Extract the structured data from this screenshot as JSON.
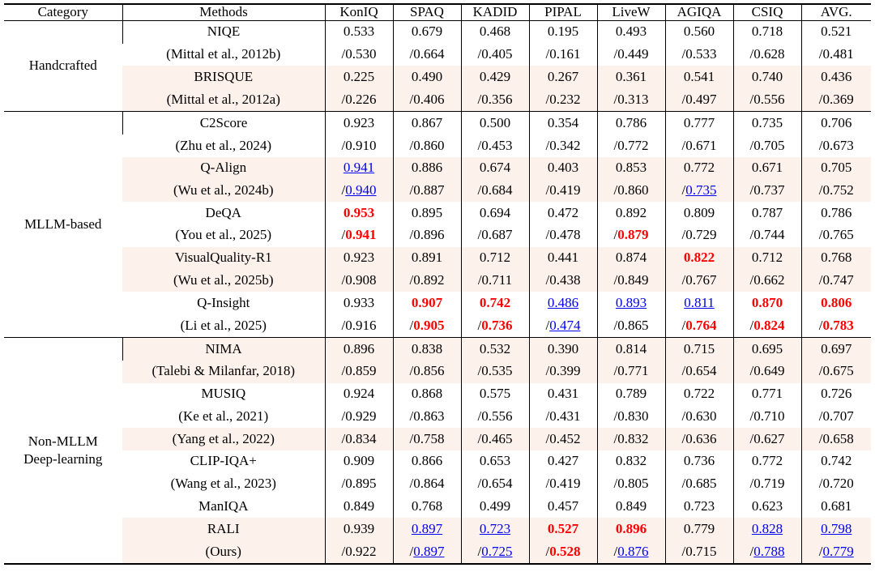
{
  "table": {
    "headers": [
      "Category",
      "Methods",
      "KonIQ",
      "SPAQ",
      "KADID",
      "PIPAL",
      "LiveW",
      "AGIQA",
      "CSIQ",
      "AVG."
    ],
    "groups": [
      {
        "category": [
          "Handcrafted"
        ],
        "rows": [
          {
            "method": "NIQE",
            "shade": false,
            "cells": [
              {
                "t": "0.533"
              },
              {
                "t": "0.679"
              },
              {
                "t": "0.468"
              },
              {
                "t": "0.195"
              },
              {
                "t": "0.493"
              },
              {
                "t": "0.560"
              },
              {
                "t": "0.718"
              },
              {
                "t": "0.521"
              }
            ]
          },
          {
            "method": "(Mittal et al., 2012b)",
            "shade": false,
            "cells": [
              {
                "t": "/0.530"
              },
              {
                "t": "/0.664"
              },
              {
                "t": "/0.405"
              },
              {
                "t": "/0.161"
              },
              {
                "t": "/0.449"
              },
              {
                "t": "/0.533"
              },
              {
                "t": "/0.628"
              },
              {
                "t": "/0.481"
              }
            ]
          },
          {
            "method": "BRISQUE",
            "shade": true,
            "cells": [
              {
                "t": "0.225"
              },
              {
                "t": "0.490"
              },
              {
                "t": "0.429"
              },
              {
                "t": "0.267"
              },
              {
                "t": "0.361"
              },
              {
                "t": "0.541"
              },
              {
                "t": "0.740"
              },
              {
                "t": "0.436"
              }
            ]
          },
          {
            "method": "(Mittal et al., 2012a)",
            "shade": true,
            "cells": [
              {
                "t": "/0.226"
              },
              {
                "t": "/0.406"
              },
              {
                "t": "/0.356"
              },
              {
                "t": "/0.232"
              },
              {
                "t": "/0.313"
              },
              {
                "t": "/0.497"
              },
              {
                "t": "/0.556"
              },
              {
                "t": "/0.369"
              }
            ]
          }
        ]
      },
      {
        "category": [
          "MLLM-based"
        ],
        "rows": [
          {
            "method": "C2Score",
            "shade": false,
            "cells": [
              {
                "t": "0.923"
              },
              {
                "t": "0.867"
              },
              {
                "t": "0.500"
              },
              {
                "t": "0.354"
              },
              {
                "t": "0.786"
              },
              {
                "t": "0.777"
              },
              {
                "t": "0.735"
              },
              {
                "t": "0.706"
              }
            ]
          },
          {
            "method": "(Zhu et al., 2024)",
            "shade": false,
            "cells": [
              {
                "t": "/0.910"
              },
              {
                "t": "/0.860"
              },
              {
                "t": "/0.453"
              },
              {
                "t": "/0.342"
              },
              {
                "t": "/0.772"
              },
              {
                "t": "/0.671"
              },
              {
                "t": "/0.705"
              },
              {
                "t": "/0.673"
              }
            ]
          },
          {
            "method": "Q-Align",
            "shade": true,
            "cells": [
              {
                "t": "0.941",
                "s": "second"
              },
              {
                "t": "0.886"
              },
              {
                "t": "0.674"
              },
              {
                "t": "0.403"
              },
              {
                "t": "0.853"
              },
              {
                "t": "0.772"
              },
              {
                "t": "0.671"
              },
              {
                "t": "0.705"
              }
            ]
          },
          {
            "method": "(Wu et al., 2024b)",
            "shade": true,
            "cells": [
              {
                "t": "0.940",
                "s": "second",
                "slash": true
              },
              {
                "t": "/0.887"
              },
              {
                "t": "/0.684"
              },
              {
                "t": "/0.419"
              },
              {
                "t": "/0.860"
              },
              {
                "t": "0.735",
                "s": "second",
                "slash": true
              },
              {
                "t": "/0.737"
              },
              {
                "t": "/0.752"
              }
            ]
          },
          {
            "method": "DeQA",
            "shade": false,
            "cells": [
              {
                "t": "0.953",
                "s": "best"
              },
              {
                "t": "0.895"
              },
              {
                "t": "0.694"
              },
              {
                "t": "0.472"
              },
              {
                "t": "0.892"
              },
              {
                "t": "0.809"
              },
              {
                "t": "0.787"
              },
              {
                "t": "0.786"
              }
            ]
          },
          {
            "method": "(You et al., 2025)",
            "shade": false,
            "cells": [
              {
                "t": "0.941",
                "s": "best",
                "slash": true
              },
              {
                "t": "/0.896"
              },
              {
                "t": "/0.687"
              },
              {
                "t": "/0.478"
              },
              {
                "t": "0.879",
                "s": "best",
                "slash": true
              },
              {
                "t": "/0.729"
              },
              {
                "t": "/0.744"
              },
              {
                "t": "/0.765"
              }
            ]
          },
          {
            "method": "VisualQuality-R1",
            "shade": true,
            "cells": [
              {
                "t": "0.923"
              },
              {
                "t": "0.891"
              },
              {
                "t": "0.712"
              },
              {
                "t": "0.441"
              },
              {
                "t": "0.874"
              },
              {
                "t": "0.822",
                "s": "best"
              },
              {
                "t": "0.712"
              },
              {
                "t": "0.768"
              }
            ]
          },
          {
            "method": "(Wu et al., 2025b)",
            "shade": true,
            "cells": [
              {
                "t": "/0.908"
              },
              {
                "t": "/0.892"
              },
              {
                "t": "/0.711"
              },
              {
                "t": "/0.438"
              },
              {
                "t": "/0.849"
              },
              {
                "t": "/0.767"
              },
              {
                "t": "/0.662"
              },
              {
                "t": "/0.747"
              }
            ]
          },
          {
            "method": "Q-Insight",
            "shade": false,
            "cells": [
              {
                "t": "0.933"
              },
              {
                "t": "0.907",
                "s": "best"
              },
              {
                "t": "0.742",
                "s": "best"
              },
              {
                "t": "0.486",
                "s": "second"
              },
              {
                "t": "0.893",
                "s": "second"
              },
              {
                "t": "0.811",
                "s": "second"
              },
              {
                "t": "0.870",
                "s": "best"
              },
              {
                "t": "0.806",
                "s": "best"
              }
            ]
          },
          {
            "method": "(Li et al., 2025)",
            "shade": false,
            "cells": [
              {
                "t": "/0.916"
              },
              {
                "t": "0.905",
                "s": "best",
                "slash": true
              },
              {
                "t": "0.736",
                "s": "best",
                "slash": true
              },
              {
                "t": "0.474",
                "s": "second",
                "slash": true
              },
              {
                "t": "/0.865"
              },
              {
                "t": "0.764",
                "s": "best",
                "slash": true
              },
              {
                "t": "0.824",
                "s": "best",
                "slash": true
              },
              {
                "t": "0.783",
                "s": "best",
                "slash": true
              }
            ]
          }
        ]
      },
      {
        "category": [
          "Non-MLLM",
          "Deep-learning"
        ],
        "rows": [
          {
            "method": "NIMA",
            "shade": true,
            "cells": [
              {
                "t": "0.896"
              },
              {
                "t": "0.838"
              },
              {
                "t": "0.532"
              },
              {
                "t": "0.390"
              },
              {
                "t": "0.814"
              },
              {
                "t": "0.715"
              },
              {
                "t": "0.695"
              },
              {
                "t": "0.697"
              }
            ]
          },
          {
            "method": "(Talebi & Milanfar, 2018)",
            "shade": true,
            "cells": [
              {
                "t": "/0.859"
              },
              {
                "t": "/0.856"
              },
              {
                "t": "/0.535"
              },
              {
                "t": "/0.399"
              },
              {
                "t": "/0.771"
              },
              {
                "t": "/0.654"
              },
              {
                "t": "/0.649"
              },
              {
                "t": "/0.675"
              }
            ]
          },
          {
            "method": "MUSIQ",
            "shade": false,
            "cells": [
              {
                "t": "0.924"
              },
              {
                "t": "0.868"
              },
              {
                "t": "0.575"
              },
              {
                "t": "0.431"
              },
              {
                "t": "0.789"
              },
              {
                "t": "0.722"
              },
              {
                "t": "0.771"
              },
              {
                "t": "0.726"
              }
            ]
          },
          {
            "method": "(Ke et al., 2021)",
            "shade": false,
            "cells": [
              {
                "t": "/0.929"
              },
              {
                "t": "/0.863"
              },
              {
                "t": "/0.556"
              },
              {
                "t": "/0.431"
              },
              {
                "t": "/0.830"
              },
              {
                "t": "/0.630"
              },
              {
                "t": "/0.710"
              },
              {
                "t": "/0.707"
              }
            ]
          },
          {
            "method": "(Yang et al., 2022)",
            "shade": true,
            "cells": [
              {
                "t": "/0.834"
              },
              {
                "t": "/0.758"
              },
              {
                "t": "/0.465"
              },
              {
                "t": "/0.452"
              },
              {
                "t": "/0.832"
              },
              {
                "t": "/0.636"
              },
              {
                "t": "/0.627"
              },
              {
                "t": "/0.658"
              }
            ]
          },
          {
            "method": "CLIP-IQA+",
            "shade": false,
            "cells": [
              {
                "t": "0.909"
              },
              {
                "t": "0.866"
              },
              {
                "t": "0.653"
              },
              {
                "t": "0.427"
              },
              {
                "t": "0.832"
              },
              {
                "t": "0.736"
              },
              {
                "t": "0.772"
              },
              {
                "t": "0.742"
              }
            ]
          },
          {
            "method": "(Wang et al., 2023)",
            "shade": false,
            "cells": [
              {
                "t": "/0.895"
              },
              {
                "t": "/0.864"
              },
              {
                "t": "/0.654"
              },
              {
                "t": "/0.419"
              },
              {
                "t": "/0.805"
              },
              {
                "t": "/0.685"
              },
              {
                "t": "/0.719"
              },
              {
                "t": "/0.720"
              }
            ]
          },
          {
            "method": "ManIQA",
            "shade": false,
            "cells": [
              {
                "t": "0.849"
              },
              {
                "t": "0.768"
              },
              {
                "t": "0.499"
              },
              {
                "t": "0.457"
              },
              {
                "t": "0.849"
              },
              {
                "t": "0.723"
              },
              {
                "t": "0.623"
              },
              {
                "t": "0.681"
              }
            ]
          },
          {
            "method": "RALI",
            "shade": true,
            "cells": [
              {
                "t": "0.939"
              },
              {
                "t": "0.897",
                "s": "second"
              },
              {
                "t": "0.723",
                "s": "second"
              },
              {
                "t": "0.527",
                "s": "best"
              },
              {
                "t": "0.896",
                "s": "best"
              },
              {
                "t": "0.779"
              },
              {
                "t": "0.828",
                "s": "second"
              },
              {
                "t": "0.798",
                "s": "second"
              }
            ]
          },
          {
            "method": "(Ours)",
            "shade": true,
            "cells": [
              {
                "t": "/0.922"
              },
              {
                "t": "0.897",
                "s": "second",
                "slash": true
              },
              {
                "t": "0.725",
                "s": "second",
                "slash": true
              },
              {
                "t": "0.528",
                "s": "best",
                "slash": true
              },
              {
                "t": "0.876",
                "s": "second",
                "slash": true
              },
              {
                "t": "/0.715"
              },
              {
                "t": "0.788",
                "s": "second",
                "slash": true
              },
              {
                "t": "0.779",
                "s": "second",
                "slash": true
              }
            ]
          }
        ]
      }
    ]
  }
}
